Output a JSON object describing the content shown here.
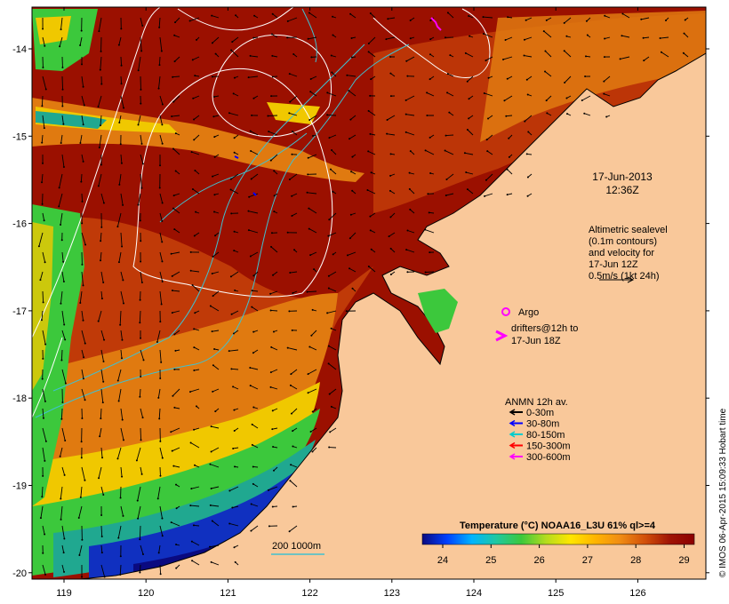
{
  "map": {
    "lon_ticks": [
      "119",
      "120",
      "121",
      "122",
      "123",
      "124",
      "125",
      "126"
    ],
    "lat_ticks": [
      "-14",
      "-15",
      "-16",
      "-17",
      "-18",
      "-19",
      "-20"
    ]
  },
  "annotations": {
    "date": "17-Jun-2013",
    "time": "12:36Z",
    "altimetry_lines": [
      "Altimetric sealevel",
      "(0.1m contours)",
      "and velocity for",
      "17-Jun 12Z",
      "0.5m/s (1kt 24h)"
    ],
    "argo_label": "Argo",
    "drifters_lines": [
      "drifters@12h to",
      "17-Jun 18Z"
    ],
    "depth_contours_label": "200  1000m"
  },
  "anmn_legend": {
    "title": "ANMN 12h av.",
    "items": [
      {
        "label": "0-30m",
        "color": "#000000"
      },
      {
        "label": "30-80m",
        "color": "#0000ff"
      },
      {
        "label": "80-150m",
        "color": "#00cccc"
      },
      {
        "label": "150-300m",
        "color": "#ff0000"
      },
      {
        "label": "300-600m",
        "color": "#ff00ff"
      }
    ]
  },
  "colorbar": {
    "title": "Temperature (°C) NOAA16_L3U 61% ql>=4",
    "ticks": [
      "24",
      "25",
      "26",
      "27",
      "28",
      "29"
    ],
    "colors": [
      "#0a0a80",
      "#0040ff",
      "#00b4ff",
      "#20c8a0",
      "#3cc83c",
      "#b4dc1e",
      "#ffe600",
      "#ffb400",
      "#f08c14",
      "#d2500a",
      "#a01405",
      "#8c0000"
    ]
  },
  "credit": "© IMOS 06-Apr-2015 15:09:33 Hobart time",
  "colors": {
    "land": "#f9c89a",
    "warm": "#9b1000",
    "hot": "#c03a08",
    "orange": "#e07a10",
    "yellow": "#f0c800",
    "green": "#3cc83c",
    "teal": "#20a890",
    "blue": "#1030c0",
    "deep": "#0a0a80"
  }
}
